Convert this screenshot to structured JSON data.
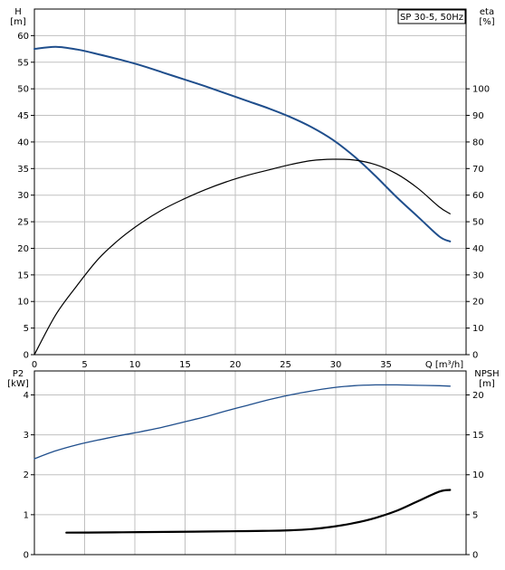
{
  "colors": {
    "head_curve": "#1f4e8c",
    "eta_curve": "#000000",
    "p2_curve": "#1f4e8c",
    "npsh_curve": "#000000",
    "grid": "#c0c0c0",
    "axis": "#000000"
  },
  "chart_data": [
    {
      "type": "line",
      "legend_box": "SP 30-5, 50Hz",
      "left_axis": {
        "name": "H",
        "unit": "[m]",
        "ticks": [
          0,
          5,
          10,
          15,
          20,
          25,
          30,
          35,
          40,
          45,
          50,
          55,
          60
        ],
        "ylim": [
          0,
          65
        ]
      },
      "right_axis": {
        "name": "eta",
        "unit": "[%]",
        "ticks": [
          0,
          10,
          20,
          30,
          40,
          50,
          60,
          70,
          80,
          90,
          100
        ],
        "ylim": [
          0,
          130
        ]
      },
      "x_axis": {
        "label": "Q [m³/h]",
        "ticks": [
          0,
          5,
          10,
          15,
          20,
          25,
          30,
          35
        ],
        "xlim": [
          0,
          40.5
        ]
      },
      "grid": true,
      "series": [
        {
          "key": "H",
          "axis": "left",
          "color_key": "head_curve",
          "stroke_width": 2,
          "points": [
            [
              0,
              57.5
            ],
            [
              2,
              57.9
            ],
            [
              4,
              57.4
            ],
            [
              6,
              56.5
            ],
            [
              8,
              55.5
            ],
            [
              10,
              54.4
            ],
            [
              12,
              53.1
            ],
            [
              14,
              51.8
            ],
            [
              16,
              50.5
            ],
            [
              18,
              49.1
            ],
            [
              20,
              47.7
            ],
            [
              22,
              46.3
            ],
            [
              24,
              44.7
            ],
            [
              26,
              42.8
            ],
            [
              28,
              40.4
            ],
            [
              30,
              37.3
            ],
            [
              32,
              33.6
            ],
            [
              34,
              29.6
            ],
            [
              36,
              25.9
            ],
            [
              38,
              22.2
            ],
            [
              39,
              21.3
            ]
          ]
        },
        {
          "key": "eta",
          "axis": "right",
          "color_key": "eta_curve",
          "stroke_width": 1.2,
          "points": [
            [
              0,
              0
            ],
            [
              2,
              15
            ],
            [
              4,
              26
            ],
            [
              6,
              36
            ],
            [
              8,
              43.5
            ],
            [
              10,
              49.5
            ],
            [
              12,
              54.5
            ],
            [
              14,
              58.5
            ],
            [
              16,
              62
            ],
            [
              18,
              65
            ],
            [
              20,
              67.5
            ],
            [
              22,
              69.5
            ],
            [
              24,
              71.5
            ],
            [
              26,
              73
            ],
            [
              28,
              73.5
            ],
            [
              30,
              73.2
            ],
            [
              32,
              71.5
            ],
            [
              34,
              68
            ],
            [
              36,
              62.5
            ],
            [
              38,
              55.5
            ],
            [
              39,
              53
            ]
          ]
        }
      ]
    },
    {
      "type": "line",
      "left_axis": {
        "name": "P2",
        "unit": "[kW]",
        "ticks": [
          0,
          1,
          2,
          3,
          4
        ],
        "ylim": [
          0,
          4.6
        ]
      },
      "right_axis": {
        "name": "NPSH",
        "unit": "[m]",
        "ticks": [
          0,
          5,
          10,
          15,
          20
        ],
        "ylim": [
          0,
          23
        ]
      },
      "x_axis": {
        "xlim": [
          0,
          40.5
        ]
      },
      "grid": true,
      "series": [
        {
          "key": "P2",
          "axis": "left",
          "color_key": "p2_curve",
          "stroke_width": 1.3,
          "points": [
            [
              0,
              2.4
            ],
            [
              2,
              2.6
            ],
            [
              4,
              2.75
            ],
            [
              6,
              2.87
            ],
            [
              8,
              2.98
            ],
            [
              10,
              3.08
            ],
            [
              12,
              3.19
            ],
            [
              14,
              3.32
            ],
            [
              16,
              3.45
            ],
            [
              18,
              3.6
            ],
            [
              20,
              3.74
            ],
            [
              22,
              3.88
            ],
            [
              24,
              4.0
            ],
            [
              26,
              4.1
            ],
            [
              28,
              4.18
            ],
            [
              30,
              4.23
            ],
            [
              32,
              4.25
            ],
            [
              34,
              4.25
            ],
            [
              36,
              4.24
            ],
            [
              38,
              4.23
            ],
            [
              39,
              4.22
            ]
          ]
        },
        {
          "key": "NPSH",
          "axis": "right",
          "color_key": "npsh_curve",
          "stroke_width": 2.2,
          "points": [
            [
              3,
              2.75
            ],
            [
              5,
              2.76
            ],
            [
              10,
              2.82
            ],
            [
              15,
              2.88
            ],
            [
              20,
              2.95
            ],
            [
              22,
              2.98
            ],
            [
              24,
              3.05
            ],
            [
              26,
              3.2
            ],
            [
              28,
              3.5
            ],
            [
              30,
              3.95
            ],
            [
              32,
              4.6
            ],
            [
              34,
              5.5
            ],
            [
              36,
              6.7
            ],
            [
              38,
              7.9
            ],
            [
              39,
              8.1
            ]
          ]
        }
      ]
    }
  ]
}
